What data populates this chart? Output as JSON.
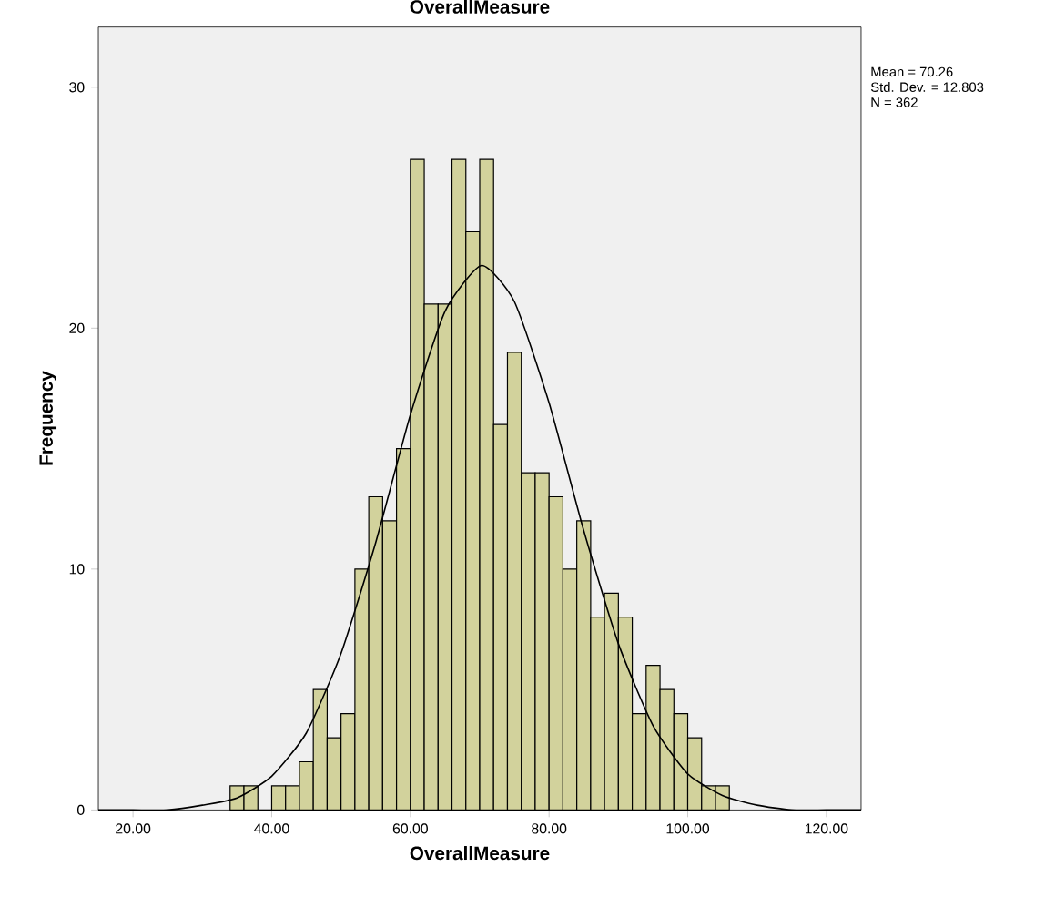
{
  "chart_data": {
    "type": "histogram",
    "title": "OverallMeasure",
    "xlabel": "OverallMeasure",
    "ylabel": "Frequency",
    "bins": [
      34,
      36,
      38,
      40,
      42,
      44,
      46,
      48,
      50,
      52,
      54,
      56,
      58,
      60,
      62,
      64,
      66,
      68,
      70,
      72,
      74,
      76,
      78,
      80,
      82,
      84,
      86,
      88,
      90,
      92,
      94,
      96,
      98,
      100,
      102,
      104,
      106
    ],
    "values": [
      1,
      1,
      0,
      1,
      1,
      2,
      5,
      3,
      4,
      10,
      13,
      12,
      15,
      27,
      21,
      21,
      27,
      24,
      27,
      16,
      19,
      14,
      14,
      13,
      10,
      12,
      8,
      9,
      8,
      4,
      6,
      5,
      4,
      3,
      1,
      1
    ],
    "color": "#d2d29c",
    "series": [
      {
        "type": "line",
        "color": "#000000",
        "x": [
          15,
          20,
          25,
          30,
          35,
          40,
          45,
          50,
          55,
          60,
          65,
          70.26,
          75,
          80,
          85,
          90,
          95,
          100,
          105,
          110,
          115,
          120,
          125
        ],
        "values": [
          0,
          0,
          0,
          0.2,
          0.5,
          1.4,
          3.2,
          6.5,
          11.1,
          16.4,
          20.7,
          22.6,
          21.1,
          16.9,
          11.6,
          6.9,
          3.5,
          1.5,
          0.6,
          0.2,
          0,
          0,
          0
        ]
      }
    ],
    "xlim": [
      15,
      125
    ],
    "ylim": [
      0,
      32.5
    ],
    "xticks": [
      {
        "value": 20,
        "label": "20.00"
      },
      {
        "value": 40,
        "label": "40.00"
      },
      {
        "value": 60,
        "label": "60.00"
      },
      {
        "value": 80,
        "label": "80.00"
      },
      {
        "value": 100,
        "label": "100.00"
      },
      {
        "value": 120,
        "label": "120.00"
      }
    ],
    "yticks": [
      0,
      10,
      20,
      30
    ],
    "grid": false,
    "annotations": [
      "Mean = 70.26",
      "Std. Dev. = 12.803",
      "N = 362"
    ]
  }
}
